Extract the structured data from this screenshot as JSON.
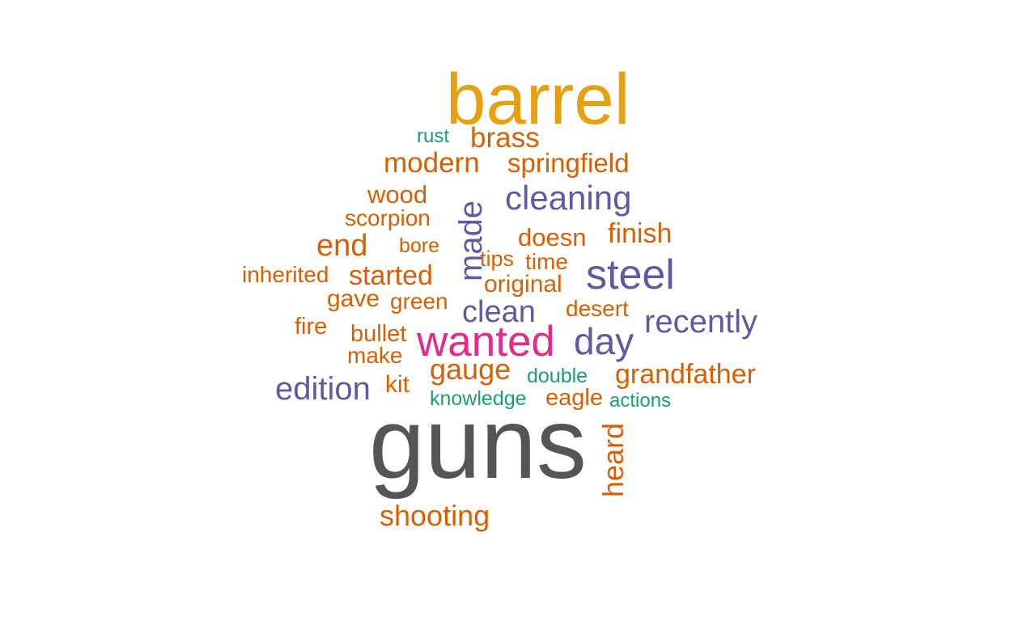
{
  "palette": {
    "orange": "#d95f02",
    "gold": "#e6a010",
    "purple": "#6159a3",
    "teal": "#1b9e77",
    "magenta": "#e7298a",
    "gray": "#555555"
  },
  "words": [
    {
      "id": "barrel",
      "text": "barrel",
      "color": "gold"
    },
    {
      "id": "rust",
      "text": "rust",
      "color": "teal"
    },
    {
      "id": "brass",
      "text": "brass",
      "color": "orange"
    },
    {
      "id": "modern",
      "text": "modern",
      "color": "orange"
    },
    {
      "id": "springfield",
      "text": "springfield",
      "color": "orange"
    },
    {
      "id": "wood",
      "text": "wood",
      "color": "orange"
    },
    {
      "id": "made",
      "text": "made",
      "color": "purple",
      "rotated": true
    },
    {
      "id": "cleaning",
      "text": "cleaning",
      "color": "purple"
    },
    {
      "id": "scorpion",
      "text": "scorpion",
      "color": "orange"
    },
    {
      "id": "end",
      "text": "end",
      "color": "orange"
    },
    {
      "id": "bore",
      "text": "bore",
      "color": "orange"
    },
    {
      "id": "doesn",
      "text": "doesn",
      "color": "orange"
    },
    {
      "id": "finish",
      "text": "finish",
      "color": "orange"
    },
    {
      "id": "tips",
      "text": "tips",
      "color": "orange"
    },
    {
      "id": "time",
      "text": "time",
      "color": "orange"
    },
    {
      "id": "inherited",
      "text": "inherited",
      "color": "orange"
    },
    {
      "id": "started",
      "text": "started",
      "color": "orange"
    },
    {
      "id": "steel",
      "text": "steel",
      "color": "purple"
    },
    {
      "id": "original",
      "text": "original",
      "color": "orange"
    },
    {
      "id": "gave",
      "text": "gave",
      "color": "orange"
    },
    {
      "id": "green",
      "text": "green",
      "color": "orange"
    },
    {
      "id": "clean",
      "text": "clean",
      "color": "purple"
    },
    {
      "id": "desert",
      "text": "desert",
      "color": "orange"
    },
    {
      "id": "fire",
      "text": "fire",
      "color": "orange"
    },
    {
      "id": "recently",
      "text": "recently",
      "color": "purple"
    },
    {
      "id": "bullet",
      "text": "bullet",
      "color": "orange"
    },
    {
      "id": "wanted",
      "text": "wanted",
      "color": "magenta"
    },
    {
      "id": "day",
      "text": "day",
      "color": "purple"
    },
    {
      "id": "make",
      "text": "make",
      "color": "orange"
    },
    {
      "id": "gauge",
      "text": "gauge",
      "color": "orange"
    },
    {
      "id": "double",
      "text": "double",
      "color": "teal"
    },
    {
      "id": "grandfather",
      "text": "grandfather",
      "color": "orange"
    },
    {
      "id": "edition",
      "text": "edition",
      "color": "purple"
    },
    {
      "id": "kit",
      "text": "kit",
      "color": "orange"
    },
    {
      "id": "knowledge",
      "text": "knowledge",
      "color": "teal"
    },
    {
      "id": "eagle",
      "text": "eagle",
      "color": "orange"
    },
    {
      "id": "actions",
      "text": "actions",
      "color": "teal"
    },
    {
      "id": "guns",
      "text": "guns",
      "color": "gray"
    },
    {
      "id": "heard",
      "text": "heard",
      "color": "orange",
      "rotated": true
    },
    {
      "id": "shooting",
      "text": "shooting",
      "color": "orange"
    }
  ]
}
